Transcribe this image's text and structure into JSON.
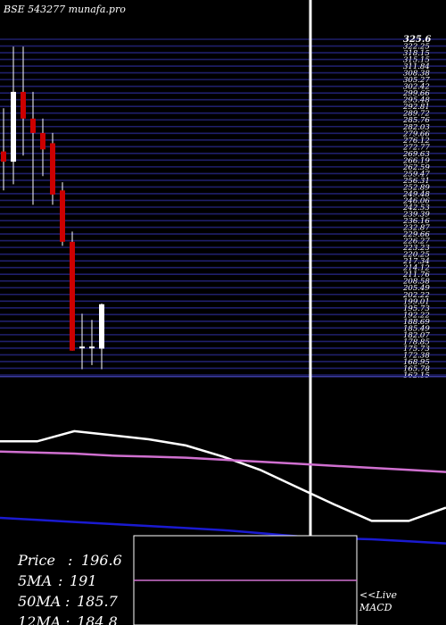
{
  "title": "BSE 543277 munafa.pro",
  "colors": {
    "background": "#000000",
    "grid": "#1f1f6b",
    "up": "#ffffff",
    "down": "#cc0000",
    "ma_short": "#ffffff",
    "ma_long": "#d070d0",
    "ma_mid": "#1a1ad0",
    "text": "#ffffff"
  },
  "info": {
    "price_label": "Price",
    "price_value": "196.6",
    "ma5_label": "5MA",
    "ma5_value": "191",
    "ma50_label": "50MA",
    "ma50_value": "185.7",
    "ma12_label": "12MA",
    "ma12_value": "184.8"
  },
  "macd": {
    "live_label": "<<Live",
    "macd_label": "MACD"
  },
  "chart_data": {
    "type": "candlestick",
    "title": "BSE 543277 munafa.pro",
    "y_tick_labels": [
      "325.6",
      "322.25",
      "318.15",
      "315.15",
      "311.84",
      "308.38",
      "305.27",
      "302.42",
      "299.66",
      "295.48",
      "292.81",
      "289.72",
      "285.76",
      "282.03",
      "279.66",
      "276.12",
      "272.77",
      "269.63",
      "266.19",
      "262.59",
      "259.47",
      "256.31",
      "252.89",
      "249.48",
      "246.06",
      "242.53",
      "239.39",
      "236.16",
      "232.87",
      "229.66",
      "226.27",
      "223.23",
      "220.25",
      "217.34",
      "214.12",
      "211.76",
      "208.58",
      "205.49",
      "202.22",
      "199.01",
      "195.73",
      "192.22",
      "188.69",
      "185.49",
      "182.07",
      "178.85",
      "175.73",
      "172.38",
      "168.95",
      "165.78",
      "162.15"
    ],
    "ylim": [
      162.15,
      325.6
    ],
    "candles": [
      {
        "open": 271,
        "high": 292,
        "low": 252,
        "close": 266
      },
      {
        "open": 266,
        "high": 322,
        "low": 255,
        "close": 300
      },
      {
        "open": 300,
        "high": 322,
        "low": 269,
        "close": 287
      },
      {
        "open": 287,
        "high": 300,
        "low": 245,
        "close": 280
      },
      {
        "open": 280,
        "high": 287,
        "low": 259,
        "close": 272
      },
      {
        "open": 275,
        "high": 280,
        "low": 245,
        "close": 250
      },
      {
        "open": 252,
        "high": 256,
        "low": 225,
        "close": 227
      },
      {
        "open": 227,
        "high": 232,
        "low": 174,
        "close": 174
      },
      {
        "open": 176,
        "high": 192,
        "low": 165,
        "close": 176
      },
      {
        "open": 176,
        "high": 189,
        "low": 167,
        "close": 176
      },
      {
        "open": 175,
        "high": 197,
        "low": 165,
        "close": 196.6
      }
    ],
    "ma_lines": [
      {
        "name": "5MA",
        "color": "#ffffff",
        "values": [
          190,
          190,
          200,
          196,
          192,
          186,
          175,
          162,
          145,
          128,
          112,
          112,
          125
        ]
      },
      {
        "name": "50MA",
        "color": "#d070d0",
        "values": [
          180,
          179,
          178,
          176,
          175,
          174,
          172,
          170,
          168,
          166,
          164,
          162,
          160
        ]
      },
      {
        "name": "12MA",
        "color": "#1a1ad0",
        "values": [
          115,
          113,
          111,
          109,
          107,
          105,
          103,
          100,
          97,
          95,
          94,
          92,
          90
        ]
      }
    ]
  }
}
